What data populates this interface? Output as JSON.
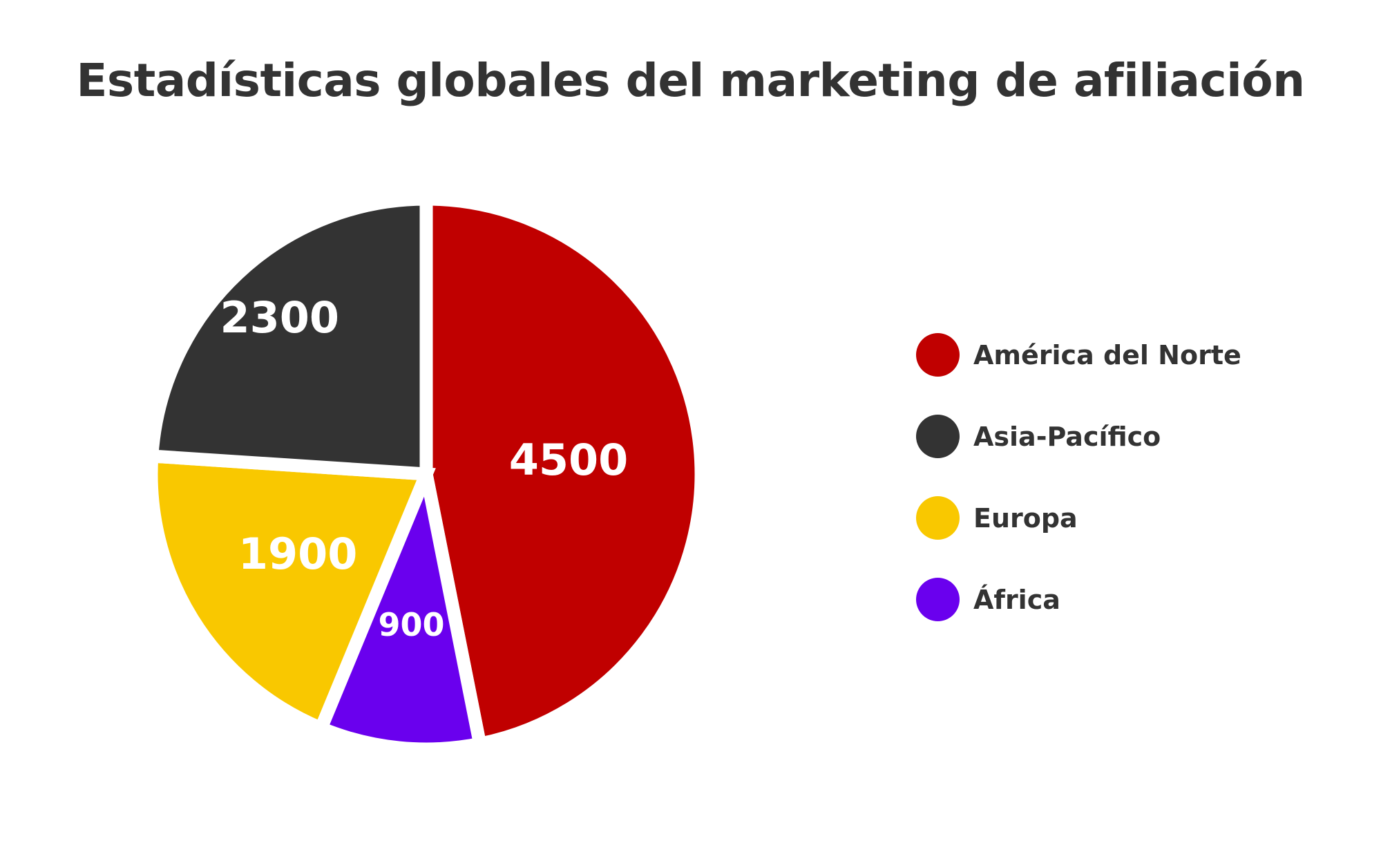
{
  "chart_data": {
    "type": "pie",
    "title": "Estadísticas globales del marketing de afiliación",
    "categories": [
      "América del Norte",
      "Asia-Pacífico",
      "Europa",
      "África"
    ],
    "values": [
      4500,
      2300,
      1900,
      900
    ],
    "data_labels": [
      "4500",
      "2300",
      "1900",
      "900"
    ],
    "colors": [
      "#c00000",
      "#333333",
      "#f9c800",
      "#6a00ee"
    ],
    "legend": "right"
  }
}
